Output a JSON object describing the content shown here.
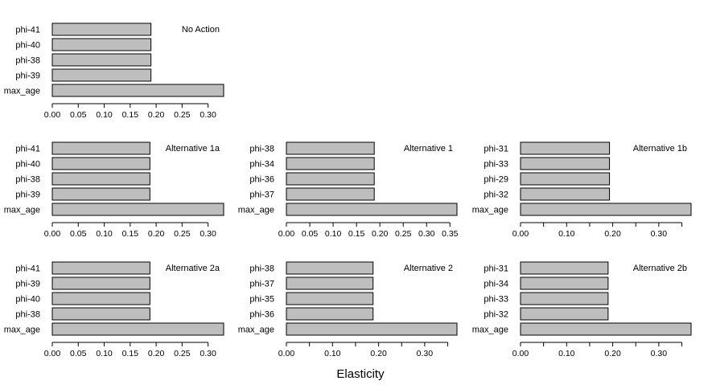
{
  "xlabel": "Elasticity",
  "chart_data": [
    {
      "type": "bar",
      "orientation": "horizontal",
      "title": "No Action",
      "categories": [
        "phi-41",
        "phi-40",
        "phi-38",
        "phi-39",
        "max_age"
      ],
      "values": [
        0.19,
        0.19,
        0.19,
        0.19,
        0.33
      ],
      "xlim": [
        0,
        0.33
      ],
      "xticks": [
        0.0,
        0.05,
        0.1,
        0.15,
        0.2,
        0.25,
        0.3
      ],
      "xtick_labels": [
        "0.00",
        "0.05",
        "0.10",
        "0.15",
        "0.20",
        "0.25",
        "0.30"
      ],
      "bar_color": "#bebebe"
    },
    {
      "type": "bar",
      "orientation": "horizontal",
      "title": "Alternative 1a",
      "categories": [
        "phi-41",
        "phi-40",
        "phi-38",
        "phi-39",
        "max_age"
      ],
      "values": [
        0.188,
        0.188,
        0.188,
        0.188,
        0.33
      ],
      "xlim": [
        0,
        0.33
      ],
      "xticks": [
        0.0,
        0.05,
        0.1,
        0.15,
        0.2,
        0.25,
        0.3
      ],
      "xtick_labels": [
        "0.00",
        "0.05",
        "0.10",
        "0.15",
        "0.20",
        "0.25",
        "0.30"
      ],
      "bar_color": "#bebebe"
    },
    {
      "type": "bar",
      "orientation": "horizontal",
      "title": "Alternative 1",
      "categories": [
        "phi-38",
        "phi-34",
        "phi-36",
        "phi-37",
        "max_age"
      ],
      "values": [
        0.188,
        0.188,
        0.188,
        0.188,
        0.365
      ],
      "xlim": [
        0,
        0.365
      ],
      "xticks": [
        0.0,
        0.05,
        0.1,
        0.15,
        0.2,
        0.25,
        0.3,
        0.35
      ],
      "xtick_labels": [
        "0.00",
        "0.05",
        "0.10",
        "0.15",
        "0.20",
        "0.25",
        "0.30",
        "0.35"
      ],
      "bar_color": "#bebebe"
    },
    {
      "type": "bar",
      "orientation": "horizontal",
      "title": "Alternative 1b",
      "categories": [
        "phi-31",
        "phi-33",
        "phi-29",
        "phi-32",
        "max_age"
      ],
      "values": [
        0.193,
        0.193,
        0.193,
        0.193,
        0.37
      ],
      "xlim": [
        0,
        0.37
      ],
      "xticks": [
        0.0,
        0.05,
        0.1,
        0.15,
        0.2,
        0.25,
        0.3,
        0.35
      ],
      "xtick_labels": [
        "0.00",
        "",
        "0.10",
        "",
        "0.20",
        "",
        "0.30",
        ""
      ],
      "bar_color": "#bebebe"
    },
    {
      "type": "bar",
      "orientation": "horizontal",
      "title": "Alternative 2a",
      "categories": [
        "phi-41",
        "phi-39",
        "phi-40",
        "phi-38",
        "max_age"
      ],
      "values": [
        0.188,
        0.188,
        0.188,
        0.188,
        0.33
      ],
      "xlim": [
        0,
        0.33
      ],
      "xticks": [
        0.0,
        0.05,
        0.1,
        0.15,
        0.2,
        0.25,
        0.3
      ],
      "xtick_labels": [
        "0.00",
        "0.05",
        "0.10",
        "0.15",
        "0.20",
        "0.25",
        "0.30"
      ],
      "bar_color": "#bebebe"
    },
    {
      "type": "bar",
      "orientation": "horizontal",
      "title": "Alternative 2",
      "categories": [
        "phi-38",
        "phi-37",
        "phi-35",
        "phi-36",
        "max_age"
      ],
      "values": [
        0.188,
        0.188,
        0.188,
        0.188,
        0.37
      ],
      "xlim": [
        0,
        0.37
      ],
      "xticks": [
        0.0,
        0.05,
        0.1,
        0.15,
        0.2,
        0.25,
        0.3,
        0.35
      ],
      "xtick_labels": [
        "0.00",
        "",
        "0.10",
        "",
        "0.20",
        "",
        "0.30",
        ""
      ],
      "bar_color": "#bebebe"
    },
    {
      "type": "bar",
      "orientation": "horizontal",
      "title": "Alternative 2b",
      "categories": [
        "phi-31",
        "phi-34",
        "phi-33",
        "phi-32",
        "max_age"
      ],
      "values": [
        0.19,
        0.19,
        0.19,
        0.19,
        0.37
      ],
      "xlim": [
        0,
        0.37
      ],
      "xticks": [
        0.0,
        0.05,
        0.1,
        0.15,
        0.2,
        0.25,
        0.3,
        0.35
      ],
      "xtick_labels": [
        "0.00",
        "",
        "0.10",
        "",
        "0.20",
        "",
        "0.30",
        ""
      ],
      "bar_color": "#bebebe"
    }
  ]
}
